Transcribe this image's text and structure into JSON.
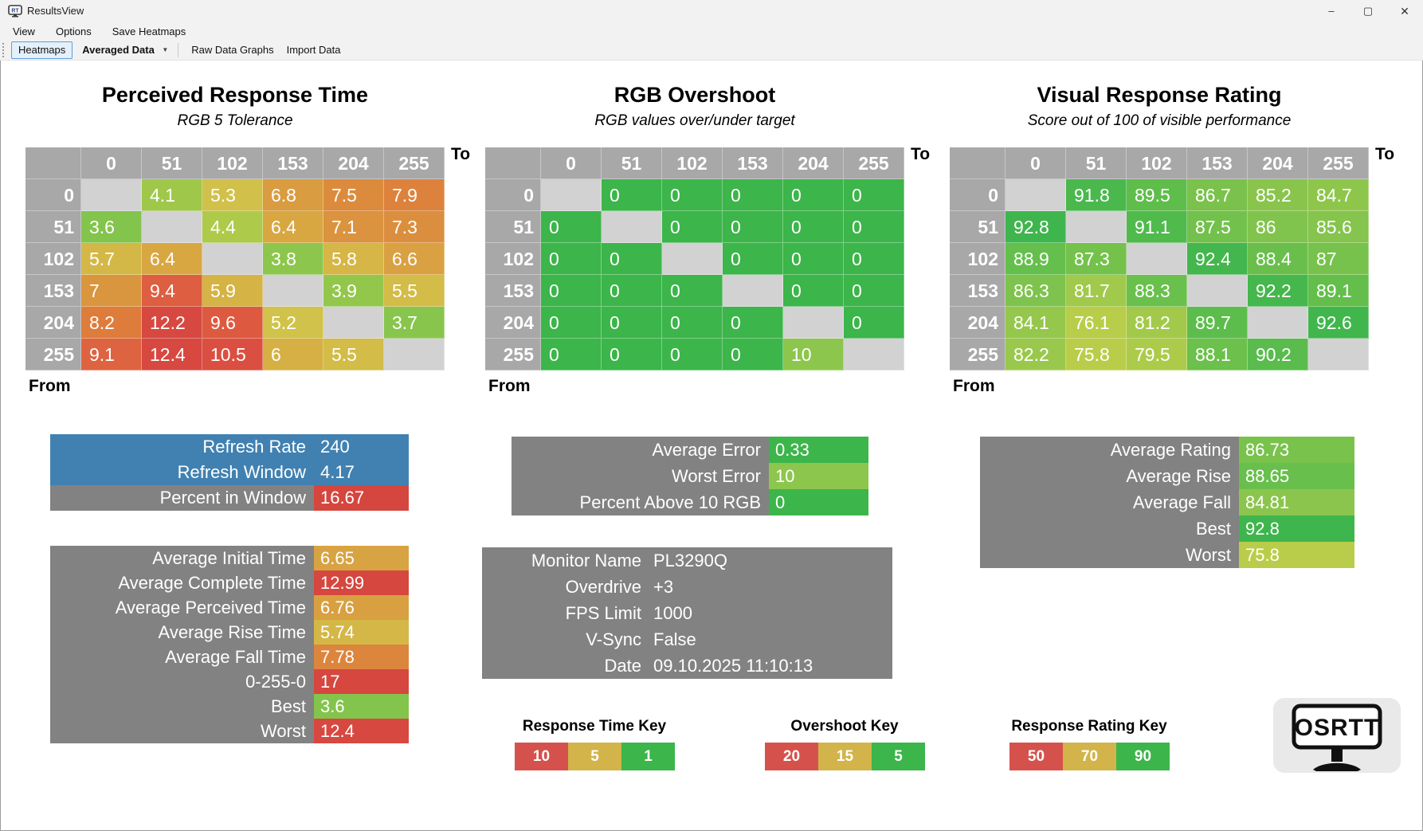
{
  "window": {
    "title": "ResultsView",
    "controls": {
      "minimize": "–",
      "maximize": "▢",
      "close": "✕"
    }
  },
  "menu": [
    "View",
    "Options",
    "Save Heatmaps"
  ],
  "toolbar": {
    "heatmaps": "Heatmaps",
    "data_select": "Averaged Data",
    "raw_data_graphs": "Raw Data Graphs",
    "import_data": "Import Data"
  },
  "axis": {
    "to": "To",
    "from": "From"
  },
  "chart_data": [
    {
      "type": "heatmap",
      "title": "Perceived Response Time",
      "subtitle": "RGB 5 Tolerance",
      "x_axis": "To",
      "y_axis": "From",
      "levels": [
        0,
        51,
        102,
        153,
        204,
        255
      ],
      "matrix": [
        [
          null,
          4.1,
          5.3,
          6.8,
          7.5,
          7.9
        ],
        [
          3.6,
          null,
          4.4,
          6.4,
          7.1,
          7.3
        ],
        [
          5.7,
          6.4,
          null,
          3.8,
          5.8,
          6.6
        ],
        [
          7,
          9.4,
          5.9,
          null,
          3.9,
          5.5
        ],
        [
          8.2,
          12.2,
          9.6,
          5.2,
          null,
          3.7
        ],
        [
          9.1,
          12.4,
          10.5,
          6,
          5.5,
          null
        ]
      ],
      "cell_colors": [
        [
          "#d2d2d2",
          "#9fc84b",
          "#d1c14a",
          "#d99c40",
          "#dc8b3d",
          "#dd823c"
        ],
        [
          "#83c44d",
          "#d2d2d2",
          "#aeca4a",
          "#d8a742",
          "#db933f",
          "#db8f3e"
        ],
        [
          "#d4b847",
          "#d8a742",
          "#d2d2d2",
          "#8dc64c",
          "#d5b646",
          "#d9a141"
        ],
        [
          "#da953f",
          "#dd5e40",
          "#d5b345",
          "#d2d2d2",
          "#92c74c",
          "#d3bc48"
        ],
        [
          "#de7c3b",
          "#d74841",
          "#dd5a40",
          "#d0c24a",
          "#d2d2d2",
          "#88c54d"
        ],
        [
          "#de6340",
          "#d74841",
          "#da4f41",
          "#d6b044",
          "#d3bc48",
          "#d2d2d2"
        ]
      ]
    },
    {
      "type": "heatmap",
      "title": "RGB Overshoot",
      "subtitle": "RGB values over/under target",
      "x_axis": "To",
      "y_axis": "From",
      "levels": [
        0,
        51,
        102,
        153,
        204,
        255
      ],
      "matrix": [
        [
          null,
          0,
          0,
          0,
          0,
          0
        ],
        [
          0,
          null,
          0,
          0,
          0,
          0
        ],
        [
          0,
          0,
          null,
          0,
          0,
          0
        ],
        [
          0,
          0,
          0,
          null,
          0,
          0
        ],
        [
          0,
          0,
          0,
          0,
          null,
          0
        ],
        [
          0,
          0,
          0,
          0,
          10,
          null
        ]
      ],
      "cell_colors": [
        [
          "#d2d2d2",
          "#3cb54a",
          "#3cb54a",
          "#3cb54a",
          "#3cb54a",
          "#3cb54a"
        ],
        [
          "#3cb54a",
          "#d2d2d2",
          "#3cb54a",
          "#3cb54a",
          "#3cb54a",
          "#3cb54a"
        ],
        [
          "#3cb54a",
          "#3cb54a",
          "#d2d2d2",
          "#3cb54a",
          "#3cb54a",
          "#3cb54a"
        ],
        [
          "#3cb54a",
          "#3cb54a",
          "#3cb54a",
          "#d2d2d2",
          "#3cb54a",
          "#3cb54a"
        ],
        [
          "#3cb54a",
          "#3cb54a",
          "#3cb54a",
          "#3cb54a",
          "#d2d2d2",
          "#3cb54a"
        ],
        [
          "#3cb54a",
          "#3cb54a",
          "#3cb54a",
          "#3cb54a",
          "#8dc64c",
          "#d2d2d2"
        ]
      ]
    },
    {
      "type": "heatmap",
      "title": "Visual Response Rating",
      "subtitle": "Score out of 100 of visible performance",
      "x_axis": "To",
      "y_axis": "From",
      "levels": [
        0,
        51,
        102,
        153,
        204,
        255
      ],
      "matrix": [
        [
          null,
          91.8,
          89.5,
          86.7,
          85.2,
          84.7
        ],
        [
          92.8,
          null,
          91.1,
          87.5,
          86,
          85.6
        ],
        [
          88.9,
          87.3,
          null,
          92.4,
          88.4,
          87
        ],
        [
          86.3,
          81.7,
          88.3,
          null,
          92.2,
          89.1
        ],
        [
          84.1,
          76.1,
          81.2,
          89.7,
          null,
          92.6
        ],
        [
          82.2,
          75.8,
          79.5,
          88.1,
          90.2,
          null
        ]
      ],
      "cell_colors": [
        [
          "#d2d2d2",
          "#4ab84d",
          "#5fbd4c",
          "#7ac24c",
          "#89c54d",
          "#8ec64c"
        ],
        [
          "#3fb54d",
          "#d2d2d2",
          "#50ba4d",
          "#72c14c",
          "#81c44d",
          "#85c44d"
        ],
        [
          "#65bf4c",
          "#74c14c",
          "#d2d2d2",
          "#43b64d",
          "#6abf4c",
          "#77c24c"
        ],
        [
          "#7ec34d",
          "#a1c94b",
          "#6ac04c",
          "#d2d2d2",
          "#45b74d",
          "#63be4c"
        ],
        [
          "#94c74c",
          "#b8cd4a",
          "#a3c94b",
          "#5dbd4c",
          "#d2d2d2",
          "#41b64d"
        ],
        [
          "#9ac84c",
          "#bacd4a",
          "#adcb4b",
          "#6cc04c",
          "#59bc4d",
          "#d2d2d2"
        ]
      ]
    }
  ],
  "summaries": {
    "refresh": [
      {
        "label": "Refresh Rate",
        "value": "240",
        "lbg": "#4181b1",
        "vbg": "#4181b1"
      },
      {
        "label": "Refresh Window",
        "value": "4.17",
        "lbg": "#4181b1",
        "vbg": "#4181b1"
      },
      {
        "label": "Percent in Window",
        "value": "16.67",
        "lbg": "#828282",
        "vbg": "#d5463e"
      }
    ],
    "times": [
      {
        "label": "Average Initial Time",
        "value": "6.65",
        "lbg": "#828282",
        "vbg": "#d8a342"
      },
      {
        "label": "Average Complete Time",
        "value": "12.99",
        "lbg": "#828282",
        "vbg": "#d5473f"
      },
      {
        "label": "Average Perceived Time",
        "value": "6.76",
        "lbg": "#828282",
        "vbg": "#d9a041"
      },
      {
        "label": "Average Rise Time",
        "value": "5.74",
        "lbg": "#828282",
        "vbg": "#d4b746"
      },
      {
        "label": "Average Fall Time",
        "value": "7.78",
        "lbg": "#828282",
        "vbg": "#dc853d"
      },
      {
        "label": "0-255-0",
        "value": "17",
        "lbg": "#828282",
        "vbg": "#d5473f"
      },
      {
        "label": "Best",
        "value": "3.6",
        "lbg": "#828282",
        "vbg": "#83c44d"
      },
      {
        "label": "Worst",
        "value": "12.4",
        "lbg": "#828282",
        "vbg": "#d74841"
      }
    ],
    "error": [
      {
        "label": "Average Error",
        "value": "0.33",
        "lbg": "#828282",
        "vbg": "#3cb54a"
      },
      {
        "label": "Worst Error",
        "value": "10",
        "lbg": "#828282",
        "vbg": "#8dc64c"
      },
      {
        "label": "Percent Above 10 RGB",
        "value": "0",
        "lbg": "#828282",
        "vbg": "#3cb54a"
      }
    ],
    "rating": [
      {
        "label": "Average Rating",
        "value": "86.73",
        "lbg": "#828282",
        "vbg": "#79c24c"
      },
      {
        "label": "Average Rise",
        "value": "88.65",
        "lbg": "#828282",
        "vbg": "#68bf4c"
      },
      {
        "label": "Average Fall",
        "value": "84.81",
        "lbg": "#828282",
        "vbg": "#8bc54d"
      },
      {
        "label": "Best",
        "value": "92.8",
        "lbg": "#828282",
        "vbg": "#3fb54d"
      },
      {
        "label": "Worst",
        "value": "75.8",
        "lbg": "#828282",
        "vbg": "#bacd4a"
      }
    ]
  },
  "monitor_info": [
    {
      "label": "Monitor Name",
      "value": "PL3290Q"
    },
    {
      "label": "Overdrive",
      "value": "+3"
    },
    {
      "label": "FPS Limit",
      "value": "1000"
    },
    {
      "label": "V-Sync",
      "value": "False"
    },
    {
      "label": "Date",
      "value": "09.10.2025 11:10:13"
    }
  ],
  "keys": {
    "segment_colors": [
      "#d5524c",
      "#d2b44a",
      "#3cb54a"
    ],
    "items": [
      {
        "title": "Response Time Key",
        "values": [
          "10",
          "5",
          "1"
        ]
      },
      {
        "title": "Overshoot Key",
        "values": [
          "20",
          "15",
          "5"
        ]
      },
      {
        "title": "Response Rating Key",
        "values": [
          "50",
          "70",
          "90"
        ]
      }
    ]
  },
  "logo_text": "OSRTT",
  "colors": {
    "header_gray": "#a8a8a8",
    "diagonal_gray": "#d2d2d2",
    "box_gray": "#828282",
    "accent_blue": "#4181b1"
  }
}
